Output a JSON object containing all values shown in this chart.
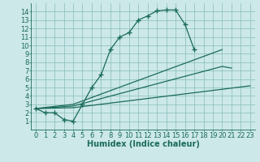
{
  "xlabel": "Humidex (Indice chaleur)",
  "ylabel": "",
  "bg_color": "#cce8e8",
  "line_color": "#1a6b5a",
  "grid_color": "#88bbbb",
  "xlim": [
    -0.5,
    23.5
  ],
  "ylim": [
    0,
    15
  ],
  "xticks": [
    0,
    1,
    2,
    3,
    4,
    5,
    6,
    7,
    8,
    9,
    10,
    11,
    12,
    13,
    14,
    15,
    16,
    17,
    18,
    19,
    20,
    21,
    22,
    23
  ],
  "yticks": [
    1,
    2,
    3,
    4,
    5,
    6,
    7,
    8,
    9,
    10,
    11,
    12,
    13,
    14
  ],
  "main_x": [
    0,
    1,
    2,
    3,
    4,
    5,
    6,
    7,
    8,
    9,
    10,
    11,
    12,
    13,
    14,
    15,
    16,
    17
  ],
  "main_y": [
    2.5,
    2.0,
    2.0,
    1.2,
    1.0,
    3.0,
    5.0,
    6.5,
    9.5,
    11.0,
    11.5,
    13.0,
    13.5,
    14.1,
    14.2,
    14.2,
    12.5,
    9.5
  ],
  "line2_x": [
    0,
    4,
    20
  ],
  "line2_y": [
    2.5,
    3.0,
    9.5
  ],
  "line3_x": [
    0,
    4,
    20,
    21
  ],
  "line3_y": [
    2.5,
    2.8,
    7.5,
    7.3
  ],
  "line4_x": [
    0,
    4,
    23
  ],
  "line4_y": [
    2.5,
    2.6,
    5.2
  ],
  "marker_style": "+",
  "marker_size": 4,
  "font_size": 6
}
